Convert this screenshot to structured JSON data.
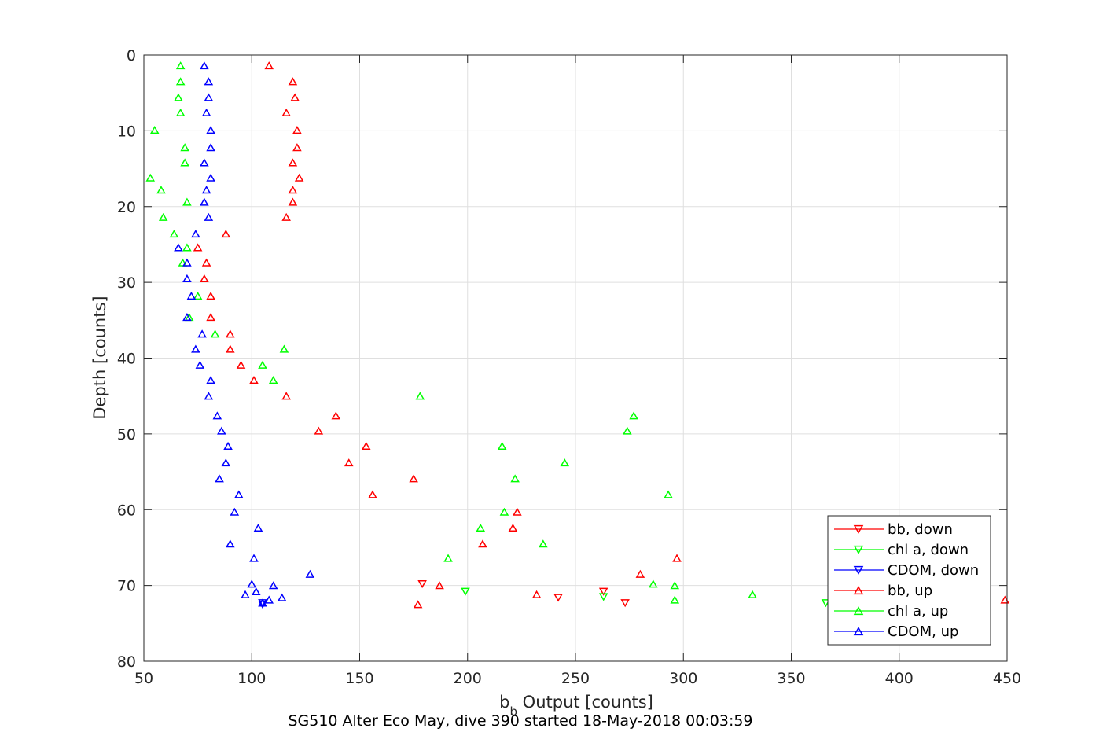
{
  "chart_data": {
    "type": "scatter",
    "title": "SG510 Alter Eco May, dive 390 started 18-May-2018 00:03:59",
    "xlabel": {
      "main": "b",
      "sub": "b",
      "rest": " Output [counts]"
    },
    "ylabel": "Depth [counts]",
    "xlim": [
      50,
      450
    ],
    "ylim": [
      0,
      80
    ],
    "y_reversed": true,
    "grid": true,
    "legend_position": "bottom-right",
    "xticks": [
      "50",
      "100",
      "150",
      "200",
      "250",
      "300",
      "350",
      "400",
      "450"
    ],
    "yticks": [
      "0",
      "10",
      "20",
      "30",
      "40",
      "50",
      "60",
      "70",
      "80"
    ],
    "series": [
      {
        "name": "bb, down",
        "color": "#ff0000",
        "marker": "triangle-down",
        "x": [
          179,
          263,
          242,
          273
        ],
        "y": [
          69.8,
          70.8,
          71.6,
          72.3
        ]
      },
      {
        "name": "chl a, down",
        "color": "#00ff00",
        "marker": "triangle-down",
        "x": [
          199,
          263,
          366
        ],
        "y": [
          70.8,
          71.5,
          72.3
        ]
      },
      {
        "name": "CDOM, down",
        "color": "#0000ff",
        "marker": "triangle-down",
        "x": [
          105,
          105
        ],
        "y": [
          72.3,
          72.5
        ]
      },
      {
        "name": "bb, up",
        "color": "#ff0000",
        "marker": "triangle-up",
        "x": [
          108,
          119,
          120,
          116,
          121,
          121,
          119,
          122,
          119,
          119,
          116,
          88,
          75,
          79,
          78,
          81,
          81,
          90,
          90,
          95,
          101,
          116,
          139,
          131,
          153,
          145,
          175,
          156,
          223,
          221,
          207,
          297,
          280,
          187,
          232,
          177,
          449
        ],
        "y": [
          1.4,
          3.5,
          5.6,
          7.6,
          9.9,
          12.2,
          14.2,
          16.2,
          17.8,
          19.4,
          21.4,
          23.6,
          25.4,
          27.4,
          29.5,
          31.8,
          34.6,
          36.8,
          38.8,
          40.9,
          42.9,
          45.0,
          47.6,
          49.6,
          51.6,
          53.8,
          55.9,
          58.0,
          60.3,
          62.4,
          64.5,
          66.4,
          68.5,
          70.0,
          71.2,
          72.5,
          71.9
        ]
      },
      {
        "name": "chl a, up",
        "color": "#00ff00",
        "marker": "triangle-up",
        "x": [
          67,
          67,
          66,
          67,
          55,
          69,
          69,
          53,
          58,
          70,
          59,
          64,
          70,
          68,
          75,
          71,
          83,
          115,
          105,
          110,
          178,
          277,
          274,
          216,
          245,
          222,
          217,
          293,
          206,
          235,
          191,
          286,
          296,
          296,
          332
        ],
        "y": [
          1.4,
          3.5,
          5.6,
          7.6,
          9.9,
          12.2,
          14.2,
          16.2,
          17.8,
          19.4,
          21.4,
          23.6,
          25.4,
          27.4,
          31.8,
          34.6,
          36.8,
          38.8,
          40.9,
          42.9,
          45.0,
          47.6,
          49.6,
          51.6,
          53.8,
          55.9,
          60.3,
          58.0,
          62.4,
          64.5,
          66.4,
          69.8,
          70.0,
          71.9,
          71.2
        ]
      },
      {
        "name": "CDOM, up",
        "color": "#0000ff",
        "marker": "triangle-up",
        "x": [
          78,
          80,
          80,
          79,
          81,
          81,
          78,
          81,
          79,
          78,
          80,
          74,
          66,
          70,
          70,
          72,
          70,
          77,
          74,
          76,
          81,
          80,
          84,
          86,
          89,
          88,
          85,
          94,
          92,
          103,
          90,
          101,
          127,
          100,
          110,
          102,
          97,
          114,
          108,
          105
        ],
        "y": [
          1.4,
          3.5,
          5.6,
          7.6,
          9.9,
          12.2,
          14.2,
          16.2,
          17.8,
          19.4,
          21.4,
          23.6,
          25.4,
          27.4,
          29.5,
          31.8,
          34.6,
          36.8,
          38.8,
          40.9,
          42.9,
          45.0,
          47.6,
          49.6,
          51.6,
          53.8,
          55.9,
          58.0,
          60.3,
          62.4,
          64.5,
          66.4,
          68.5,
          69.8,
          70.0,
          70.8,
          71.2,
          71.6,
          71.9,
          72.3
        ]
      }
    ]
  }
}
